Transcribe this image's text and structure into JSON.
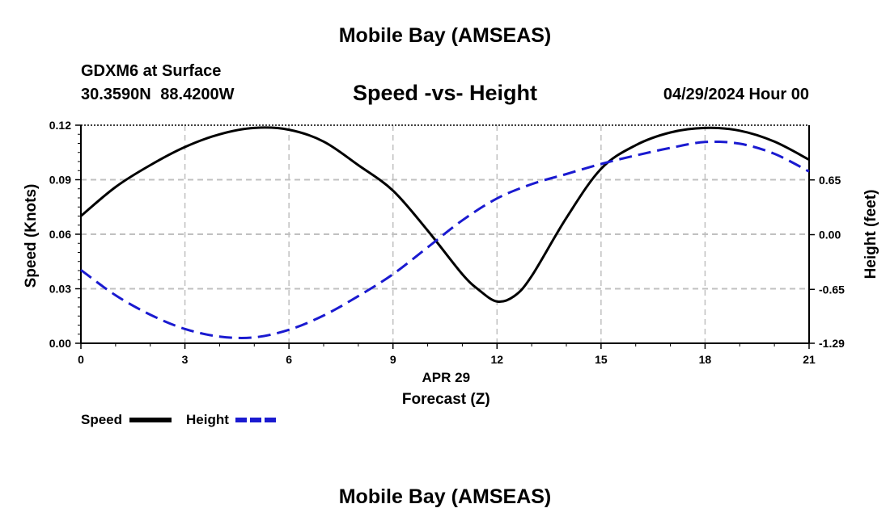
{
  "page": {
    "top_title": "Mobile Bay (AMSEAS)",
    "station": "GDXM6 at Surface",
    "coords": "30.3590N  88.4200W",
    "subtitle": "Speed -vs- Height",
    "datetime": "04/29/2024 Hour 00",
    "bottom_title": "Mobile Bay (AMSEAS)"
  },
  "colors": {
    "speed": "#000000",
    "height": "#1a1ad0",
    "grid": "#c0c0c0"
  },
  "chart_data": {
    "type": "line",
    "title": "Speed -vs- Height",
    "date_label": "APR 29",
    "xlabel": "Forecast (Z)",
    "ylabel": "Speed (Knots)",
    "y2label": "Height (feet)",
    "xlim": [
      0,
      21
    ],
    "ylim": [
      0,
      0.12
    ],
    "y2lim": [
      -1.29,
      1.3
    ],
    "x_ticks": [
      "0",
      "3",
      "6",
      "9",
      "12",
      "15",
      "18",
      "21"
    ],
    "y_ticks": [
      "0.00",
      "0.03",
      "0.06",
      "0.09",
      "0.12"
    ],
    "y2_ticks": [
      "-1.29",
      "-0.65",
      "0.00",
      "0.65"
    ],
    "grid": true,
    "legend_position": "bottom-left",
    "series": [
      {
        "name": "Speed",
        "axis": "left",
        "style": "solid",
        "x": [
          0,
          1,
          2,
          3,
          4,
          5,
          6,
          7,
          8,
          9,
          10,
          11,
          11.5,
          12,
          12.5,
          13,
          14,
          15,
          16,
          17,
          18,
          19,
          20,
          21
        ],
        "values": [
          0.07,
          0.086,
          0.098,
          0.108,
          0.115,
          0.1185,
          0.1175,
          0.111,
          0.098,
          0.084,
          0.062,
          0.038,
          0.029,
          0.023,
          0.026,
          0.037,
          0.069,
          0.096,
          0.109,
          0.116,
          0.1185,
          0.117,
          0.111,
          0.101
        ]
      },
      {
        "name": "Height",
        "axis": "right",
        "style": "dashed",
        "x": [
          0,
          1,
          2,
          3,
          4,
          5,
          6,
          7,
          8,
          9,
          10,
          11,
          12,
          13,
          14,
          15,
          16,
          17,
          18,
          19,
          20,
          21
        ],
        "values": [
          -0.42,
          -0.72,
          -0.95,
          -1.12,
          -1.21,
          -1.22,
          -1.13,
          -0.96,
          -0.73,
          -0.47,
          -0.15,
          0.17,
          0.43,
          0.6,
          0.72,
          0.84,
          0.94,
          1.03,
          1.1,
          1.08,
          0.96,
          0.75
        ]
      }
    ]
  }
}
